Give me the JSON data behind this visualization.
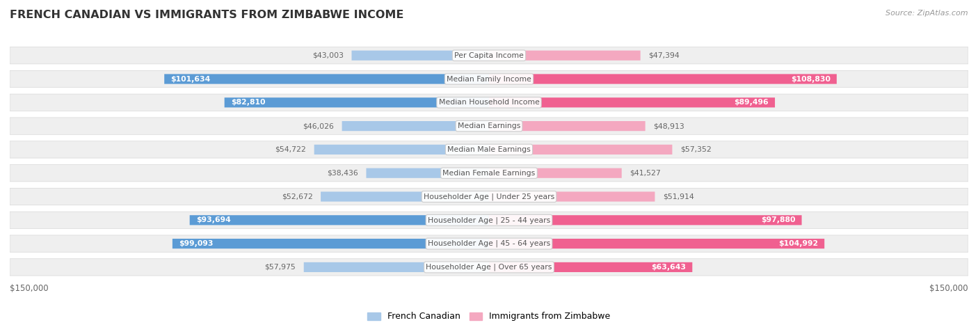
{
  "title": "FRENCH CANADIAN VS IMMIGRANTS FROM ZIMBABWE INCOME",
  "source": "Source: ZipAtlas.com",
  "categories": [
    "Per Capita Income",
    "Median Family Income",
    "Median Household Income",
    "Median Earnings",
    "Median Male Earnings",
    "Median Female Earnings",
    "Householder Age | Under 25 years",
    "Householder Age | 25 - 44 years",
    "Householder Age | 45 - 64 years",
    "Householder Age | Over 65 years"
  ],
  "french_canadian": [
    43003,
    101634,
    82810,
    46026,
    54722,
    38436,
    52672,
    93694,
    99093,
    57975
  ],
  "zimbabwe": [
    47394,
    108830,
    89496,
    48913,
    57352,
    41527,
    51914,
    97880,
    104992,
    63643
  ],
  "french_canadian_labels": [
    "$43,003",
    "$101,634",
    "$82,810",
    "$46,026",
    "$54,722",
    "$38,436",
    "$52,672",
    "$93,694",
    "$99,093",
    "$57,975"
  ],
  "zimbabwe_labels": [
    "$47,394",
    "$108,830",
    "$89,496",
    "$48,913",
    "$57,352",
    "$41,527",
    "$51,914",
    "$97,880",
    "$104,992",
    "$63,643"
  ],
  "blue_light": "#a8c8e8",
  "blue_dark": "#5b9bd5",
  "pink_light": "#f4a8c0",
  "pink_dark": "#f06090",
  "row_bg_color": "#efefef",
  "row_border_color": "#d8d8d8",
  "label_color_inside": "#ffffff",
  "label_color_outside": "#666666",
  "max_val": 150000,
  "inside_threshold": 60000,
  "legend_blue": "French Canadian",
  "legend_pink": "Immigrants from Zimbabwe",
  "axis_label_left": "$150,000",
  "axis_label_right": "$150,000",
  "title_color": "#333333",
  "source_color": "#999999",
  "category_color": "#555555"
}
